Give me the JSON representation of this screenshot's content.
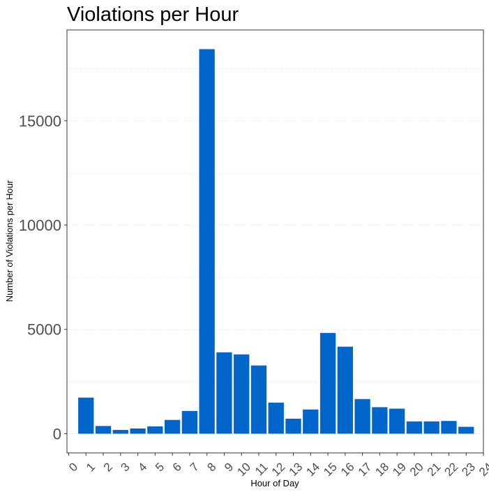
{
  "chart_data": {
    "type": "bar",
    "title": "Violations per Hour",
    "xlabel": "Hour of Day",
    "ylabel": "Number of Violations per Hour",
    "x": [
      1,
      2,
      3,
      4,
      5,
      6,
      7,
      8,
      9,
      10,
      11,
      12,
      13,
      14,
      15,
      16,
      17,
      18,
      19,
      20,
      21,
      22,
      23
    ],
    "values": [
      1730,
      370,
      180,
      250,
      350,
      660,
      1090,
      18430,
      3900,
      3800,
      3270,
      1490,
      720,
      1160,
      4830,
      4170,
      1660,
      1270,
      1200,
      590,
      590,
      610,
      330
    ],
    "x_ticks": [
      "0",
      "1",
      "2",
      "3",
      "4",
      "5",
      "6",
      "7",
      "8",
      "9",
      "10",
      "11",
      "12",
      "13",
      "14",
      "15",
      "16",
      "17",
      "18",
      "19",
      "20",
      "21",
      "22",
      "23",
      "24"
    ],
    "y_ticks": [
      "0",
      "5000",
      "10000",
      "15000"
    ],
    "xlim": [
      -0.1,
      24.0
    ],
    "ylim": [
      -920,
      19350
    ],
    "grid": true,
    "bar_color": "#0066CC"
  }
}
